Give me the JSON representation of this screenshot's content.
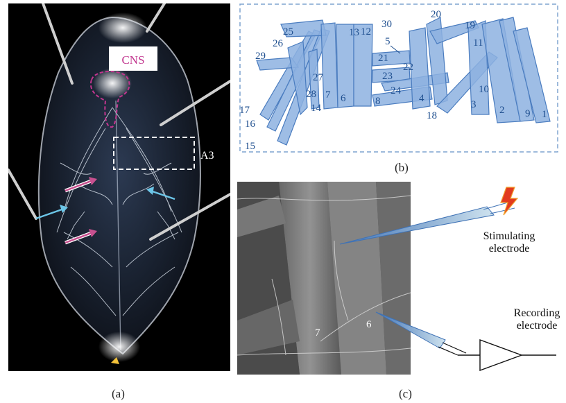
{
  "panel_a": {
    "cns_label": "CNS",
    "a3_label": "A3",
    "caption": "(a)"
  },
  "panel_b": {
    "caption": "(b)",
    "muscle_labels": [
      "25",
      "26",
      "29",
      "17",
      "16",
      "15",
      "27",
      "28",
      "14",
      "7",
      "6",
      "13",
      "12",
      "30",
      "5",
      "21",
      "23",
      "22",
      "24",
      "8",
      "4",
      "18",
      "20",
      "19",
      "11",
      "10",
      "3",
      "2",
      "9",
      "1"
    ]
  },
  "panel_c": {
    "caption": "(c)",
    "stimulating_label_line1": "Stimulating",
    "stimulating_label_line2": "electrode",
    "recording_label_line1": "Recording",
    "recording_label_line2": "electrode",
    "muscle_7": "7",
    "muscle_6": "6"
  },
  "colors": {
    "muscle_fill": "#7ea6d8",
    "muscle_stroke": "#3f72b5",
    "label_blue": "#1f4f8f",
    "cns_magenta": "#c2368f",
    "arrow_pink": "#c7508f",
    "arrow_cyan": "#6cc6e8",
    "lightning": "#e23b1e"
  }
}
